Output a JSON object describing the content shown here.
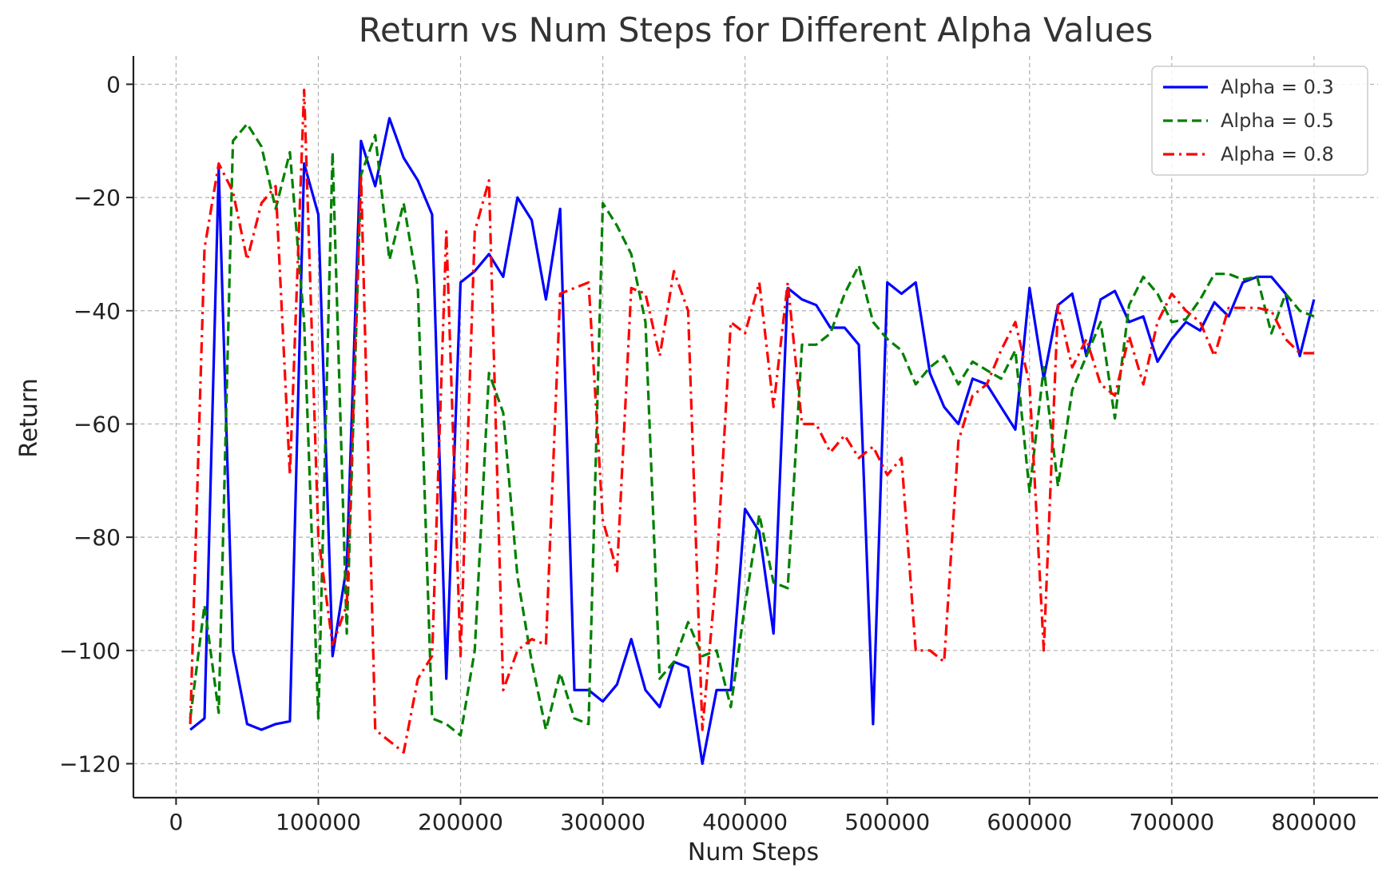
{
  "chart_data": {
    "type": "line",
    "title": "Return vs Num Steps for Different Alpha Values",
    "xlabel": "Num Steps",
    "ylabel": "Return",
    "xlim": [
      -30000,
      845000
    ],
    "ylim": [
      -126,
      5
    ],
    "xticks": [
      0,
      100000,
      200000,
      300000,
      400000,
      500000,
      600000,
      700000,
      800000
    ],
    "xtick_labels": [
      "0",
      "100000",
      "200000",
      "300000",
      "400000",
      "500000",
      "600000",
      "700000",
      "800000"
    ],
    "yticks": [
      0,
      -20,
      -40,
      -60,
      -80,
      -100,
      -120
    ],
    "ytick_labels": [
      "0",
      "−20",
      "−40",
      "−60",
      "−80",
      "−100",
      "−120"
    ],
    "grid": true,
    "legend_position": "top-right",
    "x": [
      10000,
      20000,
      30000,
      40000,
      50000,
      60000,
      70000,
      80000,
      90000,
      100000,
      110000,
      120000,
      130000,
      140000,
      150000,
      160000,
      170000,
      180000,
      190000,
      200000,
      210000,
      220000,
      230000,
      240000,
      250000,
      260000,
      270000,
      280000,
      290000,
      300000,
      310000,
      320000,
      330000,
      340000,
      350000,
      360000,
      370000,
      380000,
      390000,
      400000,
      410000,
      420000,
      430000,
      440000,
      450000,
      460000,
      470000,
      480000,
      490000,
      500000,
      510000,
      520000,
      530000,
      540000,
      550000,
      560000,
      570000,
      580000,
      590000,
      600000,
      610000,
      620000,
      630000,
      640000,
      650000,
      660000,
      670000,
      680000,
      690000,
      700000,
      710000,
      720000,
      730000,
      740000,
      750000,
      760000,
      770000,
      780000,
      790000,
      800000
    ],
    "series": [
      {
        "name": "Alpha = 0.3",
        "color": "#0000ff",
        "dash": "solid",
        "values": [
          -114,
          -112,
          -15,
          -100,
          -113,
          -114,
          -113,
          -112.5,
          -14,
          -23,
          -101,
          -85,
          -10,
          -18,
          -6,
          -13,
          -17,
          -23,
          -105,
          -35,
          -33,
          -30,
          -34,
          -20,
          -24,
          -38,
          -22,
          -107,
          -107,
          -109,
          -106,
          -98,
          -107,
          -110,
          -102,
          -103,
          -120,
          -107,
          -107,
          -75,
          -79,
          -97,
          -36,
          -38,
          -39,
          -43,
          -43,
          -46,
          -113,
          -35,
          -37,
          -35,
          -51,
          -57,
          -60,
          -52,
          -53,
          -57,
          -61,
          -36,
          -52,
          -39,
          -37,
          -48,
          -38,
          -36.5,
          -42,
          -41,
          -49,
          -45,
          -42,
          -43.5,
          -38.5,
          -41,
          -35,
          -34,
          -34,
          -37,
          -48,
          -38
        ]
      },
      {
        "name": "Alpha = 0.5",
        "color": "#008000",
        "dash": "dashed",
        "values": [
          -112,
          -92,
          -111,
          -10,
          -7,
          -11,
          -22,
          -12,
          -42,
          -112,
          -12,
          -97,
          -16,
          -9,
          -31,
          -21,
          -36,
          -112,
          -113,
          -115,
          -100,
          -51,
          -58,
          -87,
          -102,
          -114,
          -104,
          -112,
          -113,
          -21,
          -25,
          -30,
          -42,
          -105,
          -102,
          -95,
          -101,
          -100,
          -110,
          -92,
          -76,
          -88,
          -89,
          -46,
          -46,
          -44,
          -37,
          -32,
          -42,
          -45,
          -47,
          -53,
          -50,
          -48,
          -53,
          -49,
          -50.5,
          -52,
          -47,
          -72,
          -50,
          -71,
          -54,
          -48,
          -42,
          -59,
          -39,
          -34,
          -37,
          -42,
          -41.5,
          -38,
          -33.5,
          -33.5,
          -34.5,
          -34,
          -44,
          -37,
          -40,
          -41
        ]
      },
      {
        "name": "Alpha = 0.8",
        "color": "#ff0000",
        "dash": "dashdot",
        "values": [
          -113,
          -29,
          -14,
          -19,
          -31,
          -21,
          -18,
          -69,
          -1,
          -80,
          -99,
          -92,
          -16,
          -114,
          -116,
          -118,
          -105,
          -101,
          -26,
          -101,
          -26,
          -17,
          -107,
          -100,
          -98,
          -99,
          -37,
          -36,
          -35,
          -77,
          -86,
          -36,
          -37,
          -48,
          -33,
          -40,
          -114,
          -86,
          -42,
          -44,
          -35,
          -57,
          -35,
          -60,
          -60,
          -65,
          -62,
          -66,
          -64,
          -69,
          -66,
          -100,
          -100,
          -102,
          -63,
          -55,
          -53,
          -47,
          -42,
          -53,
          -100,
          -39,
          -50,
          -45,
          -53,
          -55,
          -44.5,
          -53,
          -42,
          -37,
          -40,
          -42,
          -48,
          -39.5,
          -39.5,
          -39.5,
          -40,
          -45,
          -47.5,
          -47.5
        ]
      }
    ]
  }
}
